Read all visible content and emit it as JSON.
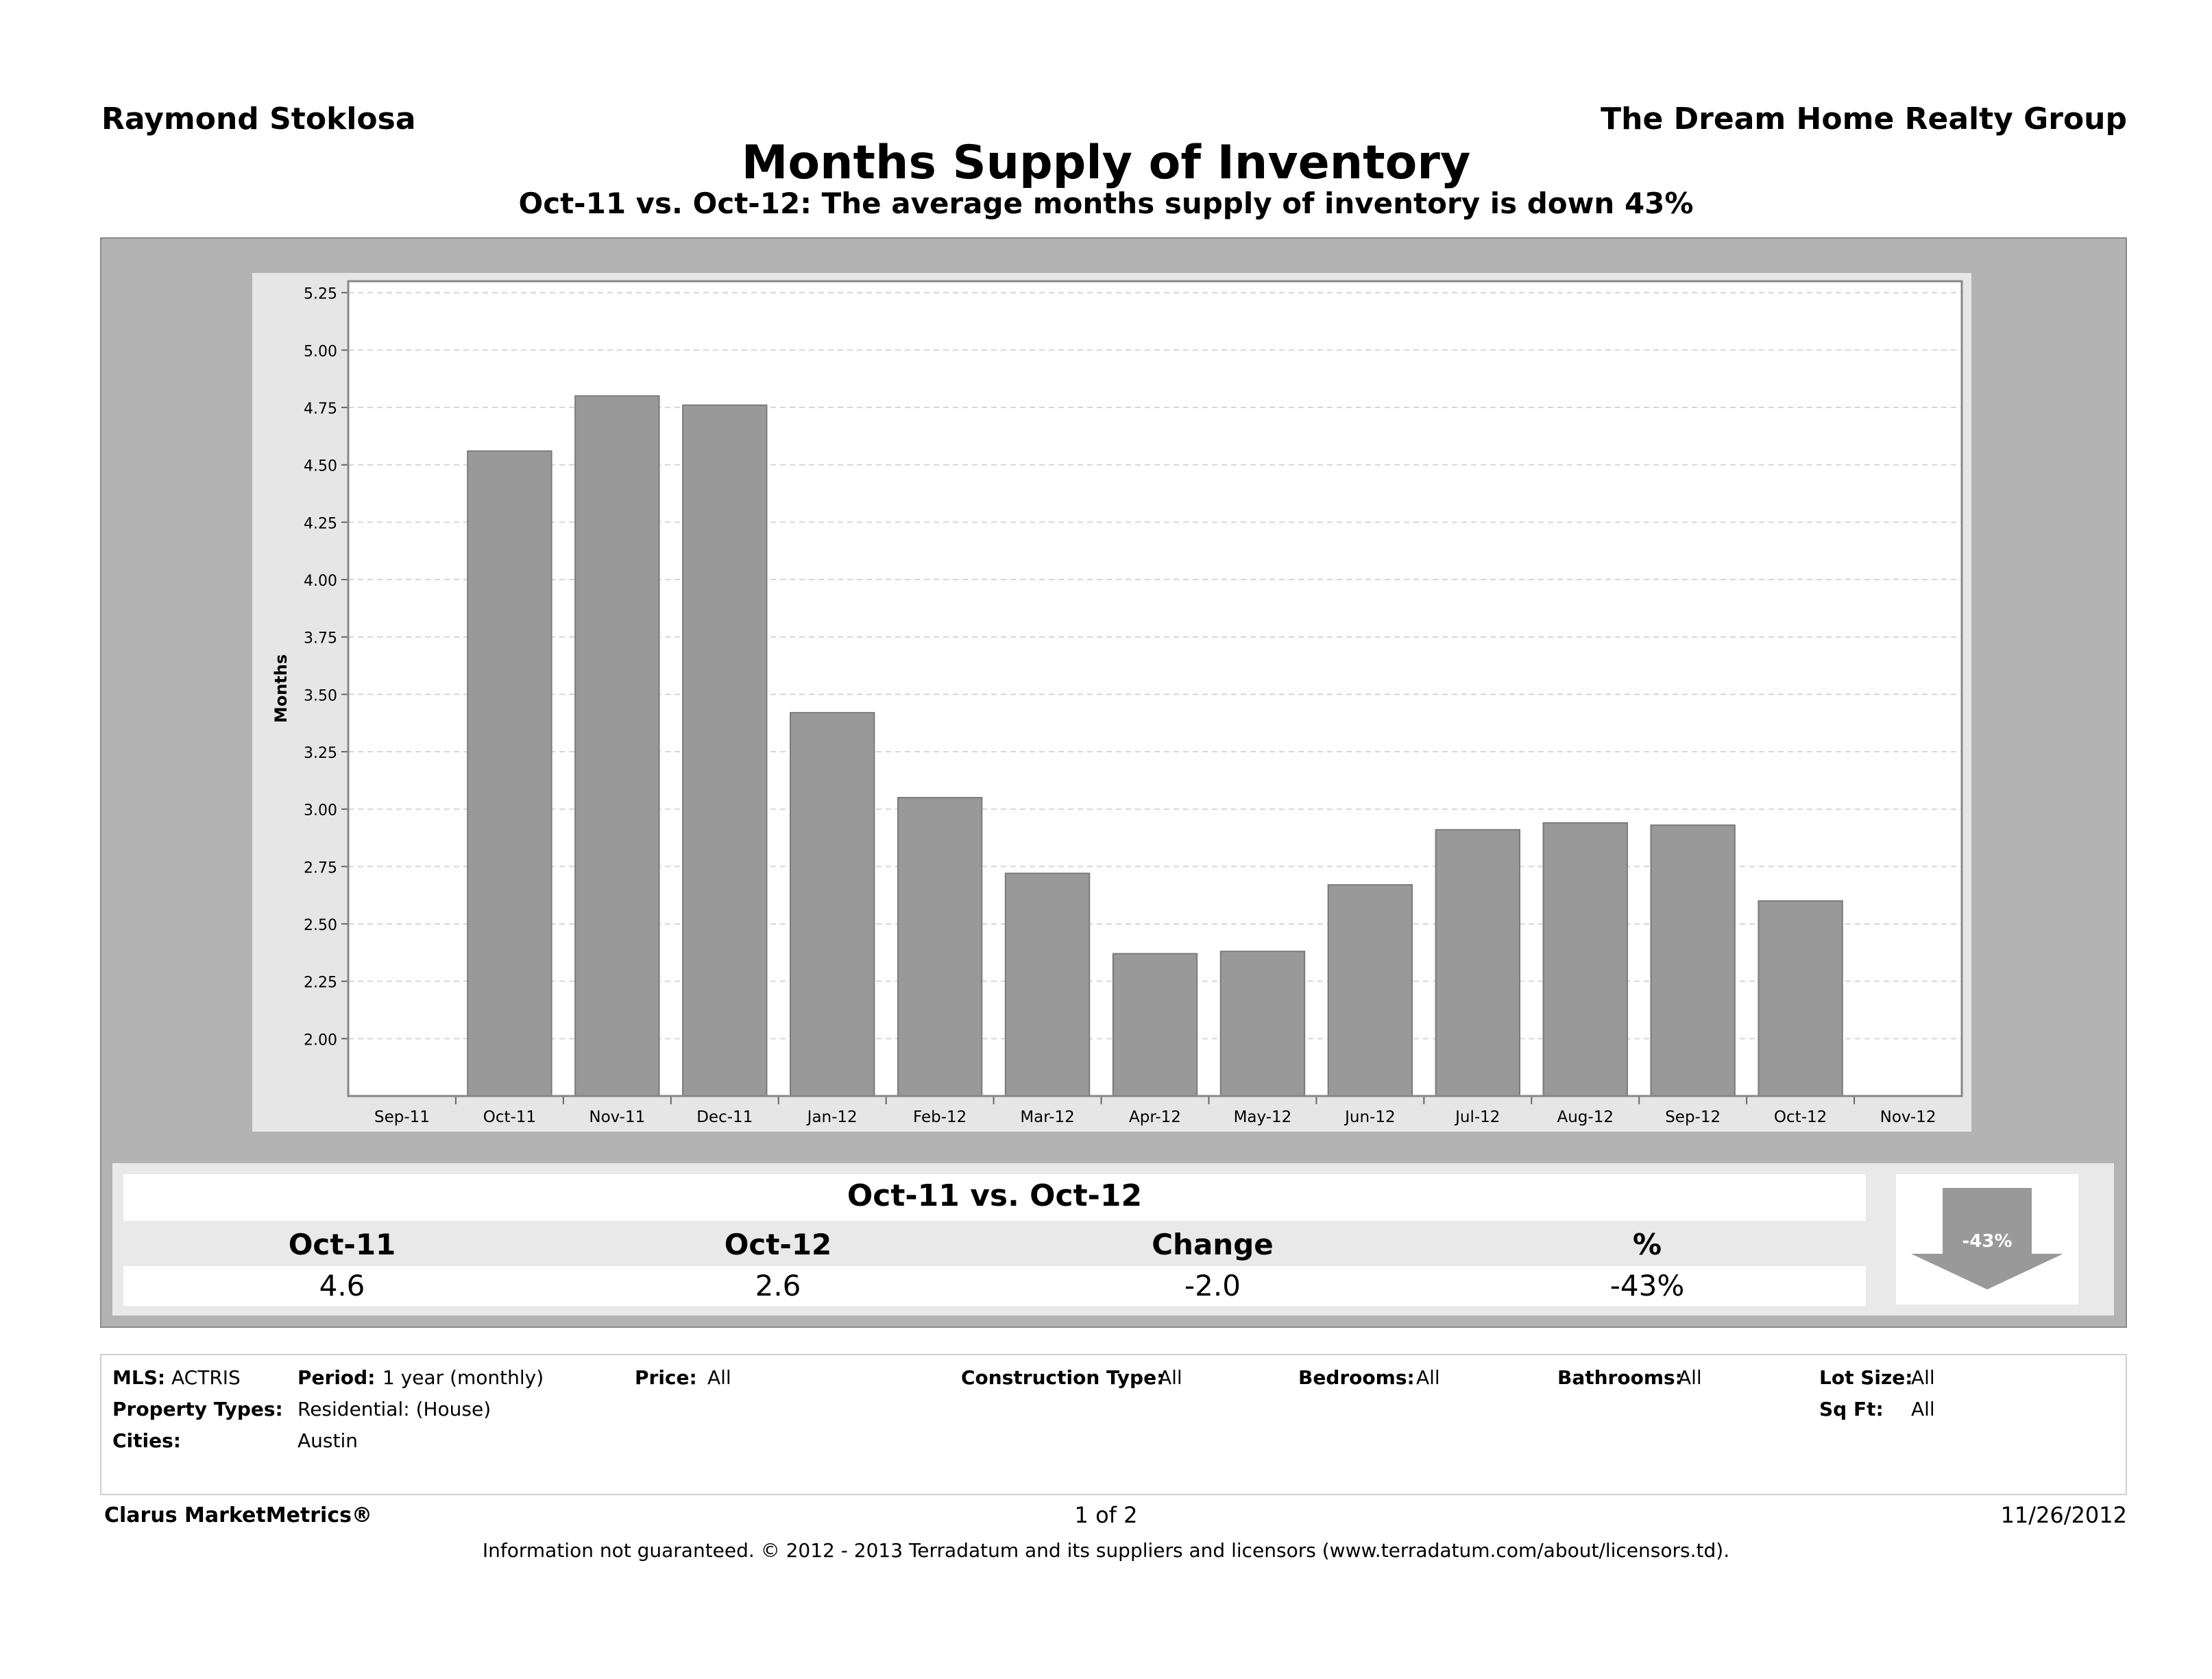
{
  "header": {
    "agent": "Raymond Stoklosa",
    "broker": "The Dream Home Realty Group",
    "title": "Months Supply of Inventory",
    "subtitle": "Oct-11 vs. Oct-12:  The average months supply of inventory is down 43%"
  },
  "chart_data": {
    "type": "bar",
    "categories": [
      "Sep-11",
      "Oct-11",
      "Nov-11",
      "Dec-11",
      "Jan-12",
      "Feb-12",
      "Mar-12",
      "Apr-12",
      "May-12",
      "Jun-12",
      "Jul-12",
      "Aug-12",
      "Sep-12",
      "Oct-12",
      "Nov-12"
    ],
    "values": [
      null,
      4.56,
      4.8,
      4.76,
      3.42,
      3.05,
      2.72,
      2.37,
      2.38,
      2.67,
      2.91,
      2.94,
      2.93,
      2.6,
      null
    ],
    "ylabel": "Months",
    "ylim": [
      1.75,
      5.3
    ],
    "yticks": [
      "2.00",
      "2.25",
      "2.50",
      "2.75",
      "3.00",
      "3.25",
      "3.50",
      "3.75",
      "4.00",
      "4.25",
      "4.50",
      "4.75",
      "5.00",
      "5.25"
    ],
    "grid": true,
    "bar_color": "#999999"
  },
  "summary": {
    "title": "Oct-11 vs. Oct-12",
    "headers": [
      "Oct-11",
      "Oct-12",
      "Change",
      "%"
    ],
    "values": [
      "4.6",
      "2.6",
      "-2.0",
      "-43%"
    ],
    "badge": "-43%"
  },
  "criteria": {
    "mls_label": "MLS:",
    "mls_value": "ACTRIS",
    "period_label": "Period:",
    "period_value": "1 year (monthly)",
    "price_label": "Price:",
    "price_value": "All",
    "construction_label": "Construction Type:",
    "construction_value": "All",
    "bedrooms_label": "Bedrooms:",
    "bedrooms_value": "All",
    "bathrooms_label": "Bathrooms:",
    "bathrooms_value": "All",
    "lotsize_label": "Lot Size:",
    "lotsize_value": "All",
    "proptypes_label": "Property Types:",
    "proptypes_value": "Residential: (House)",
    "sqft_label": "Sq Ft:",
    "sqft_value": "All",
    "cities_label": "Cities:",
    "cities_value": "Austin"
  },
  "footer": {
    "brand": "Clarus MarketMetrics®",
    "page": "1 of 2",
    "date": "11/26/2012",
    "disclaimer": "Information not guaranteed.  © 2012 - 2013 Terradatum and its suppliers and licensors (www.terradatum.com/about/licensors.td)."
  }
}
